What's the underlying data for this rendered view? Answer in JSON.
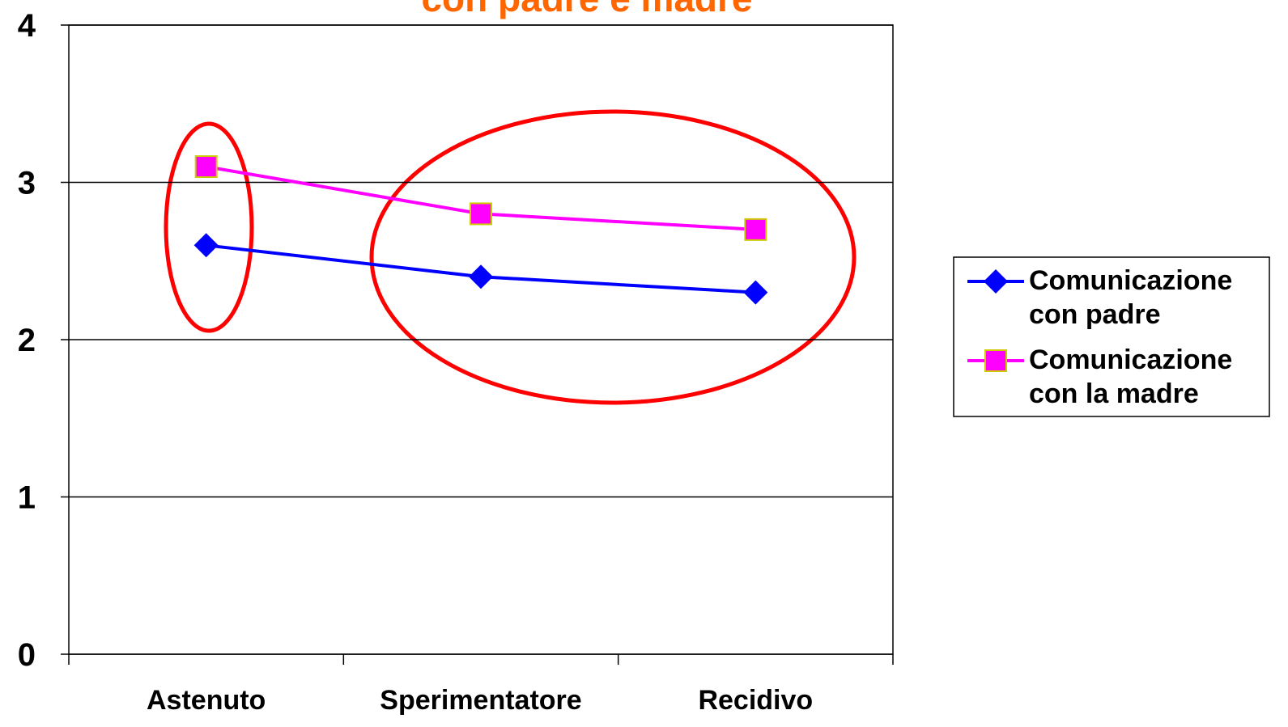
{
  "chart_data": {
    "type": "line",
    "title": "con padre e madre",
    "categories": [
      "Astenuto",
      "Sperimentatore",
      "Recidivo"
    ],
    "series": [
      {
        "name": "Comunicazione con padre",
        "color": "#0000ff",
        "marker": "diamond",
        "values": [
          2.6,
          2.4,
          2.3
        ]
      },
      {
        "name": "Comunicazione con la madre",
        "color": "#ff00ff",
        "marker": "square",
        "values": [
          3.1,
          2.8,
          2.7
        ]
      }
    ],
    "ylim": [
      0,
      4
    ],
    "yticks": [
      0,
      1,
      2,
      3,
      4
    ],
    "grid": true,
    "legend": "right"
  }
}
